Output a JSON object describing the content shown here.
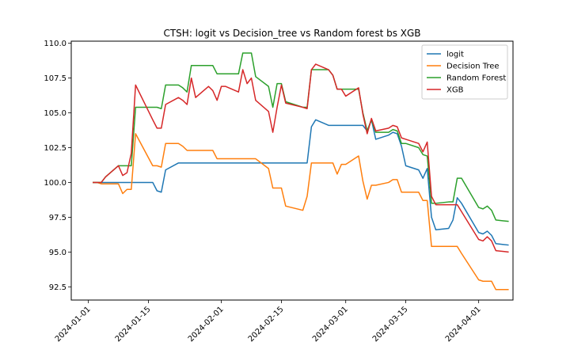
{
  "chart_data": {
    "type": "line",
    "title": "CTSH: logit vs Decision_tree vs Random forest bs XGB",
    "xlabel": "",
    "ylabel": "",
    "xlim": [
      "2023-12-28",
      "2024-04-09"
    ],
    "ylim": [
      91.55,
      110.15
    ],
    "x_ticks": [
      "2024-01-01",
      "2024-01-15",
      "2024-02-01",
      "2024-02-15",
      "2024-03-01",
      "2024-03-15",
      "2024-04-01"
    ],
    "y_ticks": [
      92.5,
      95.0,
      97.5,
      100.0,
      102.5,
      105.0,
      107.5,
      110.0
    ],
    "y_tick_labels": [
      "92.5",
      "95.0",
      "97.5",
      "100.0",
      "102.5",
      "105.0",
      "107.5",
      "110.0"
    ],
    "grid": false,
    "legend_position": "top-right",
    "series": [
      {
        "name": "logit",
        "color": "#1f77b4",
        "points": [
          [
            "2024-01-02",
            100.0
          ],
          [
            "2024-01-03",
            100.0
          ],
          [
            "2024-01-04",
            100.0
          ],
          [
            "2024-01-05",
            100.0
          ],
          [
            "2024-01-08",
            100.0
          ],
          [
            "2024-01-09",
            100.0
          ],
          [
            "2024-01-10",
            100.0
          ],
          [
            "2024-01-11",
            100.0
          ],
          [
            "2024-01-12",
            100.0
          ],
          [
            "2024-01-16",
            100.0
          ],
          [
            "2024-01-17",
            99.4
          ],
          [
            "2024-01-18",
            99.3
          ],
          [
            "2024-01-19",
            100.9
          ],
          [
            "2024-01-22",
            101.4
          ],
          [
            "2024-01-23",
            101.4
          ],
          [
            "2024-01-24",
            101.4
          ],
          [
            "2024-01-25",
            101.4
          ],
          [
            "2024-01-26",
            101.4
          ],
          [
            "2024-01-29",
            101.4
          ],
          [
            "2024-01-30",
            101.4
          ],
          [
            "2024-01-31",
            101.4
          ],
          [
            "2024-02-01",
            101.4
          ],
          [
            "2024-02-02",
            101.4
          ],
          [
            "2024-02-05",
            101.4
          ],
          [
            "2024-02-06",
            101.4
          ],
          [
            "2024-02-07",
            101.4
          ],
          [
            "2024-02-08",
            101.4
          ],
          [
            "2024-02-09",
            101.4
          ],
          [
            "2024-02-12",
            101.4
          ],
          [
            "2024-02-13",
            101.4
          ],
          [
            "2024-02-14",
            101.4
          ],
          [
            "2024-02-15",
            101.4
          ],
          [
            "2024-02-16",
            101.4
          ],
          [
            "2024-02-20",
            101.4
          ],
          [
            "2024-02-21",
            101.4
          ],
          [
            "2024-02-22",
            104.0
          ],
          [
            "2024-02-23",
            104.5
          ],
          [
            "2024-02-26",
            104.1
          ],
          [
            "2024-02-27",
            104.1
          ],
          [
            "2024-02-28",
            104.1
          ],
          [
            "2024-02-29",
            104.1
          ],
          [
            "2024-03-01",
            104.1
          ],
          [
            "2024-03-04",
            104.1
          ],
          [
            "2024-03-05",
            104.1
          ],
          [
            "2024-03-06",
            103.7
          ],
          [
            "2024-03-07",
            104.5
          ],
          [
            "2024-03-08",
            103.1
          ],
          [
            "2024-03-11",
            103.4
          ],
          [
            "2024-03-12",
            103.6
          ],
          [
            "2024-03-13",
            103.5
          ],
          [
            "2024-03-14",
            102.6
          ],
          [
            "2024-03-15",
            101.2
          ],
          [
            "2024-03-18",
            100.9
          ],
          [
            "2024-03-19",
            100.3
          ],
          [
            "2024-03-20",
            101.0
          ],
          [
            "2024-03-21",
            97.5
          ],
          [
            "2024-03-22",
            96.6
          ],
          [
            "2024-03-25",
            96.7
          ],
          [
            "2024-03-26",
            97.3
          ],
          [
            "2024-03-27",
            98.9
          ],
          [
            "2024-03-28",
            98.5
          ],
          [
            "2024-04-01",
            96.4
          ],
          [
            "2024-04-02",
            96.3
          ],
          [
            "2024-04-03",
            96.5
          ],
          [
            "2024-04-04",
            96.2
          ],
          [
            "2024-04-05",
            95.6
          ],
          [
            "2024-04-08",
            95.5
          ]
        ]
      },
      {
        "name": "Decision Tree",
        "color": "#ff7f0e",
        "points": [
          [
            "2024-01-02",
            100.0
          ],
          [
            "2024-01-03",
            100.0
          ],
          [
            "2024-01-04",
            99.9
          ],
          [
            "2024-01-05",
            99.9
          ],
          [
            "2024-01-08",
            99.9
          ],
          [
            "2024-01-09",
            99.2
          ],
          [
            "2024-01-10",
            99.5
          ],
          [
            "2024-01-11",
            99.5
          ],
          [
            "2024-01-12",
            103.5
          ],
          [
            "2024-01-16",
            101.2
          ],
          [
            "2024-01-17",
            101.2
          ],
          [
            "2024-01-18",
            101.1
          ],
          [
            "2024-01-19",
            102.8
          ],
          [
            "2024-01-22",
            102.8
          ],
          [
            "2024-01-23",
            102.6
          ],
          [
            "2024-01-24",
            102.3
          ],
          [
            "2024-01-25",
            102.3
          ],
          [
            "2024-01-26",
            102.3
          ],
          [
            "2024-01-29",
            102.3
          ],
          [
            "2024-01-30",
            102.3
          ],
          [
            "2024-01-31",
            101.7
          ],
          [
            "2024-02-01",
            101.7
          ],
          [
            "2024-02-02",
            101.7
          ],
          [
            "2024-02-05",
            101.7
          ],
          [
            "2024-02-06",
            101.7
          ],
          [
            "2024-02-07",
            101.7
          ],
          [
            "2024-02-08",
            101.7
          ],
          [
            "2024-02-09",
            101.7
          ],
          [
            "2024-02-12",
            101.0
          ],
          [
            "2024-02-13",
            99.6
          ],
          [
            "2024-02-14",
            99.6
          ],
          [
            "2024-02-15",
            99.6
          ],
          [
            "2024-02-16",
            98.3
          ],
          [
            "2024-02-20",
            98.0
          ],
          [
            "2024-02-21",
            99.0
          ],
          [
            "2024-02-22",
            101.4
          ],
          [
            "2024-02-23",
            101.4
          ],
          [
            "2024-02-26",
            101.4
          ],
          [
            "2024-02-27",
            101.4
          ],
          [
            "2024-02-28",
            100.6
          ],
          [
            "2024-02-29",
            101.3
          ],
          [
            "2024-03-01",
            101.3
          ],
          [
            "2024-03-04",
            101.9
          ],
          [
            "2024-03-05",
            100.1
          ],
          [
            "2024-03-06",
            98.8
          ],
          [
            "2024-03-07",
            99.8
          ],
          [
            "2024-03-08",
            99.8
          ],
          [
            "2024-03-11",
            100.0
          ],
          [
            "2024-03-12",
            100.2
          ],
          [
            "2024-03-13",
            100.2
          ],
          [
            "2024-03-14",
            99.3
          ],
          [
            "2024-03-15",
            99.3
          ],
          [
            "2024-03-18",
            99.3
          ],
          [
            "2024-03-19",
            98.7
          ],
          [
            "2024-03-20",
            98.7
          ],
          [
            "2024-03-21",
            95.4
          ],
          [
            "2024-03-22",
            95.4
          ],
          [
            "2024-03-25",
            95.4
          ],
          [
            "2024-03-26",
            95.4
          ],
          [
            "2024-03-27",
            95.4
          ],
          [
            "2024-03-28",
            94.9
          ],
          [
            "2024-04-01",
            93.0
          ],
          [
            "2024-04-02",
            92.9
          ],
          [
            "2024-04-03",
            92.9
          ],
          [
            "2024-04-04",
            92.9
          ],
          [
            "2024-04-05",
            92.3
          ],
          [
            "2024-04-08",
            92.3
          ]
        ]
      },
      {
        "name": "Random Forest",
        "color": "#2ca02c",
        "points": [
          [
            "2024-01-02",
            100.0
          ],
          [
            "2024-01-03",
            100.0
          ],
          [
            "2024-01-04",
            100.0
          ],
          [
            "2024-01-05",
            100.4
          ],
          [
            "2024-01-08",
            101.2
          ],
          [
            "2024-01-09",
            101.2
          ],
          [
            "2024-01-10",
            101.2
          ],
          [
            "2024-01-11",
            101.2
          ],
          [
            "2024-01-12",
            105.4
          ],
          [
            "2024-01-16",
            105.4
          ],
          [
            "2024-01-17",
            105.4
          ],
          [
            "2024-01-18",
            105.3
          ],
          [
            "2024-01-19",
            107.0
          ],
          [
            "2024-01-22",
            107.0
          ],
          [
            "2024-01-23",
            106.8
          ],
          [
            "2024-01-24",
            106.5
          ],
          [
            "2024-01-25",
            108.4
          ],
          [
            "2024-01-26",
            108.4
          ],
          [
            "2024-01-29",
            108.4
          ],
          [
            "2024-01-30",
            108.4
          ],
          [
            "2024-01-31",
            107.8
          ],
          [
            "2024-02-01",
            107.8
          ],
          [
            "2024-02-02",
            107.8
          ],
          [
            "2024-02-05",
            107.8
          ],
          [
            "2024-02-06",
            109.3
          ],
          [
            "2024-02-07",
            109.3
          ],
          [
            "2024-02-08",
            109.3
          ],
          [
            "2024-02-09",
            107.6
          ],
          [
            "2024-02-12",
            106.9
          ],
          [
            "2024-02-13",
            105.4
          ],
          [
            "2024-02-14",
            107.1
          ],
          [
            "2024-02-15",
            107.1
          ],
          [
            "2024-02-16",
            105.8
          ],
          [
            "2024-02-20",
            105.4
          ],
          [
            "2024-02-21",
            105.4
          ],
          [
            "2024-02-22",
            108.1
          ],
          [
            "2024-02-23",
            108.1
          ],
          [
            "2024-02-26",
            108.1
          ],
          [
            "2024-02-27",
            107.7
          ],
          [
            "2024-02-28",
            106.7
          ],
          [
            "2024-02-29",
            106.7
          ],
          [
            "2024-03-01",
            106.7
          ],
          [
            "2024-03-04",
            106.7
          ],
          [
            "2024-03-05",
            105.0
          ],
          [
            "2024-03-06",
            103.7
          ],
          [
            "2024-03-07",
            104.5
          ],
          [
            "2024-03-08",
            103.6
          ],
          [
            "2024-03-11",
            103.6
          ],
          [
            "2024-03-12",
            103.8
          ],
          [
            "2024-03-13",
            103.7
          ],
          [
            "2024-03-14",
            102.8
          ],
          [
            "2024-03-15",
            102.8
          ],
          [
            "2024-03-18",
            102.5
          ],
          [
            "2024-03-19",
            102.0
          ],
          [
            "2024-03-20",
            101.9
          ],
          [
            "2024-03-21",
            98.5
          ],
          [
            "2024-03-22",
            98.5
          ],
          [
            "2024-03-25",
            98.6
          ],
          [
            "2024-03-26",
            98.6
          ],
          [
            "2024-03-27",
            100.3
          ],
          [
            "2024-03-28",
            100.3
          ],
          [
            "2024-04-01",
            98.2
          ],
          [
            "2024-04-02",
            98.1
          ],
          [
            "2024-04-03",
            98.3
          ],
          [
            "2024-04-04",
            98.0
          ],
          [
            "2024-04-05",
            97.3
          ],
          [
            "2024-04-08",
            97.2
          ]
        ]
      },
      {
        "name": "XGB",
        "color": "#d62728",
        "points": [
          [
            "2024-01-02",
            100.0
          ],
          [
            "2024-01-03",
            100.0
          ],
          [
            "2024-01-04",
            100.0
          ],
          [
            "2024-01-05",
            100.4
          ],
          [
            "2024-01-08",
            101.2
          ],
          [
            "2024-01-09",
            100.5
          ],
          [
            "2024-01-10",
            100.7
          ],
          [
            "2024-01-11",
            102.1
          ],
          [
            "2024-01-12",
            107.0
          ],
          [
            "2024-01-16",
            104.5
          ],
          [
            "2024-01-17",
            103.9
          ],
          [
            "2024-01-18",
            103.9
          ],
          [
            "2024-01-19",
            105.6
          ],
          [
            "2024-01-22",
            106.1
          ],
          [
            "2024-01-23",
            105.9
          ],
          [
            "2024-01-24",
            105.6
          ],
          [
            "2024-01-25",
            107.5
          ],
          [
            "2024-01-26",
            106.1
          ],
          [
            "2024-01-29",
            106.9
          ],
          [
            "2024-01-30",
            106.6
          ],
          [
            "2024-01-31",
            105.9
          ],
          [
            "2024-02-01",
            106.9
          ],
          [
            "2024-02-02",
            106.9
          ],
          [
            "2024-02-05",
            106.5
          ],
          [
            "2024-02-06",
            108.1
          ],
          [
            "2024-02-07",
            107.1
          ],
          [
            "2024-02-08",
            107.5
          ],
          [
            "2024-02-09",
            105.9
          ],
          [
            "2024-02-12",
            105.1
          ],
          [
            "2024-02-13",
            103.6
          ],
          [
            "2024-02-14",
            105.4
          ],
          [
            "2024-02-15",
            107.0
          ],
          [
            "2024-02-16",
            105.7
          ],
          [
            "2024-02-20",
            105.4
          ],
          [
            "2024-02-21",
            105.3
          ],
          [
            "2024-02-22",
            108.1
          ],
          [
            "2024-02-23",
            108.5
          ],
          [
            "2024-02-26",
            108.1
          ],
          [
            "2024-02-27",
            107.7
          ],
          [
            "2024-02-28",
            106.7
          ],
          [
            "2024-02-29",
            106.7
          ],
          [
            "2024-03-01",
            106.2
          ],
          [
            "2024-03-04",
            106.8
          ],
          [
            "2024-03-05",
            104.9
          ],
          [
            "2024-03-06",
            103.5
          ],
          [
            "2024-03-07",
            104.6
          ],
          [
            "2024-03-08",
            103.7
          ],
          [
            "2024-03-11",
            103.9
          ],
          [
            "2024-03-12",
            104.1
          ],
          [
            "2024-03-13",
            104.0
          ],
          [
            "2024-03-14",
            103.2
          ],
          [
            "2024-03-15",
            103.1
          ],
          [
            "2024-03-18",
            102.8
          ],
          [
            "2024-03-19",
            102.2
          ],
          [
            "2024-03-20",
            102.9
          ],
          [
            "2024-03-21",
            99.0
          ],
          [
            "2024-03-22",
            98.4
          ],
          [
            "2024-03-25",
            98.4
          ],
          [
            "2024-03-26",
            98.4
          ],
          [
            "2024-03-27",
            98.4
          ],
          [
            "2024-03-28",
            97.9
          ],
          [
            "2024-04-01",
            95.9
          ],
          [
            "2024-04-02",
            95.8
          ],
          [
            "2024-04-03",
            96.1
          ],
          [
            "2024-04-04",
            95.8
          ],
          [
            "2024-04-05",
            95.1
          ],
          [
            "2024-04-08",
            95.0
          ]
        ]
      }
    ]
  }
}
